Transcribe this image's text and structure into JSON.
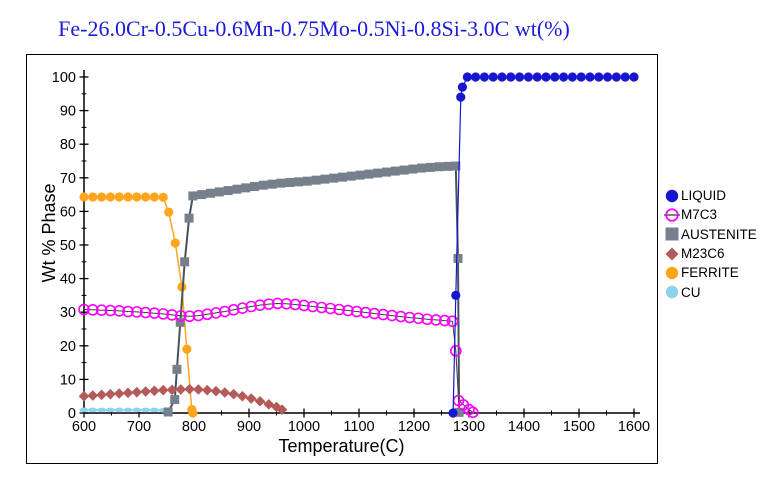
{
  "title": {
    "text": "Fe-26.0Cr-0.5Cu-0.6Mn-0.75Mo-0.5Ni-0.8Si-3.0C wt(%)",
    "color": "#1B1BD8"
  },
  "axes": {
    "x": {
      "label": "Temperature(C)",
      "min": 600,
      "max": 1600,
      "major_step": 100,
      "minor_step": 50,
      "tick_labels": [
        "600",
        "700",
        "800",
        "900",
        "1000",
        "1100",
        "1200",
        "1300",
        "1400",
        "1500",
        "1600"
      ]
    },
    "y": {
      "label": "Wt % Phase",
      "min": 0,
      "max": 100,
      "major_step": 10,
      "minor_step": 5,
      "tick_labels": [
        "0",
        "10",
        "20",
        "30",
        "40",
        "50",
        "60",
        "70",
        "80",
        "90",
        "100"
      ]
    }
  },
  "legend": {
    "items": [
      {
        "label": "LIQUID",
        "marker": "circle",
        "color": "#1616CE"
      },
      {
        "label": "M7C3",
        "marker": "open-circle",
        "color": "#FF00FF"
      },
      {
        "label": "AUSTENITE",
        "marker": "square",
        "color": "#76808C"
      },
      {
        "label": "M23C6",
        "marker": "diamond",
        "color": "#B35A5A"
      },
      {
        "label": "FERRITE",
        "marker": "circle",
        "color": "#FFA51C"
      },
      {
        "label": "CU",
        "marker": "circle",
        "color": "#8FD2EC"
      }
    ]
  },
  "chart_data": {
    "type": "line",
    "title": "Fe-26.0Cr-0.5Cu-0.6Mn-0.75Mo-0.5Ni-0.8Si-3.0C wt(%)",
    "xlabel": "Temperature(C)",
    "ylabel": "Wt % Phase",
    "xlim": [
      600,
      1600
    ],
    "ylim": [
      0,
      100
    ],
    "grid": false,
    "legend_position": "right",
    "series": [
      {
        "name": "CU",
        "marker": "ellipse",
        "color": "#8FD2EC",
        "line_color": "#8FD2EC",
        "line_width": 1.5,
        "points": [
          [
            600,
            0.9
          ],
          [
            616,
            0.9
          ],
          [
            632,
            0.9
          ],
          [
            648,
            0.9
          ],
          [
            664,
            0.9
          ],
          [
            680,
            0.9
          ],
          [
            696,
            0.9
          ],
          [
            712,
            0.9
          ],
          [
            728,
            0.9
          ],
          [
            744,
            0.8
          ]
        ]
      },
      {
        "name": "FERRITE",
        "marker": "circle",
        "color": "#FFA51C",
        "line_color": "#FFA51C",
        "line_width": 1.5,
        "points": [
          [
            600,
            64.3
          ],
          [
            616,
            64.3
          ],
          [
            632,
            64.3
          ],
          [
            648,
            64.3
          ],
          [
            664,
            64.3
          ],
          [
            680,
            64.3
          ],
          [
            696,
            64.3
          ],
          [
            712,
            64.3
          ],
          [
            728,
            64.3
          ],
          [
            744,
            64.2
          ],
          [
            754,
            59.8
          ],
          [
            766,
            50.6
          ],
          [
            778,
            37.5
          ],
          [
            787,
            19
          ],
          [
            796,
            1
          ],
          [
            798,
            0
          ]
        ]
      },
      {
        "name": "AUSTENITE",
        "marker": "square",
        "color": "#76808C",
        "line_color": "#46525C",
        "line_width": 2,
        "points": [
          [
            753,
            0.3
          ],
          [
            765,
            4
          ],
          [
            769,
            13
          ],
          [
            775,
            27
          ],
          [
            783,
            45
          ],
          [
            791,
            58
          ],
          [
            798,
            64.6
          ],
          [
            814,
            65.0
          ],
          [
            830,
            65.4
          ],
          [
            846,
            65.8
          ],
          [
            862,
            66.2
          ],
          [
            878,
            66.6
          ],
          [
            894,
            67.0
          ],
          [
            910,
            67.4
          ],
          [
            926,
            67.8
          ],
          [
            942,
            68.1
          ],
          [
            958,
            68.4
          ],
          [
            974,
            68.6
          ],
          [
            990,
            68.8
          ],
          [
            1006,
            69.0
          ],
          [
            1022,
            69.3
          ],
          [
            1038,
            69.6
          ],
          [
            1054,
            69.9
          ],
          [
            1070,
            70.2
          ],
          [
            1086,
            70.5
          ],
          [
            1102,
            70.8
          ],
          [
            1118,
            71.1
          ],
          [
            1134,
            71.4
          ],
          [
            1150,
            71.7
          ],
          [
            1166,
            72.0
          ],
          [
            1182,
            72.3
          ],
          [
            1198,
            72.6
          ],
          [
            1214,
            72.9
          ],
          [
            1230,
            73.1
          ],
          [
            1246,
            73.3
          ],
          [
            1262,
            73.4
          ],
          [
            1276,
            73.5
          ],
          [
            1280,
            46
          ],
          [
            1282,
            0.2
          ]
        ]
      },
      {
        "name": "M23C6",
        "marker": "diamond",
        "color": "#B35A5A",
        "line_color": "#B35A5A",
        "line_width": 1.5,
        "points": [
          [
            600,
            5.0
          ],
          [
            616,
            5.2
          ],
          [
            632,
            5.4
          ],
          [
            648,
            5.6
          ],
          [
            664,
            5.8
          ],
          [
            680,
            6.0
          ],
          [
            696,
            6.2
          ],
          [
            712,
            6.4
          ],
          [
            728,
            6.6
          ],
          [
            744,
            6.8
          ],
          [
            760,
            6.9
          ],
          [
            776,
            7.0
          ],
          [
            792,
            7.1
          ],
          [
            808,
            7.0
          ],
          [
            824,
            6.8
          ],
          [
            840,
            6.5
          ],
          [
            856,
            6.1
          ],
          [
            872,
            5.6
          ],
          [
            888,
            5.0
          ],
          [
            904,
            4.3
          ],
          [
            920,
            3.5
          ],
          [
            936,
            2.6
          ],
          [
            950,
            1.8
          ],
          [
            960,
            1.0
          ]
        ]
      },
      {
        "name": "M7C3",
        "marker": "open-circle",
        "color": "#FF00FF",
        "line_color": "#3C3C3C",
        "line_width": 1,
        "points": [
          [
            600,
            30.8
          ],
          [
            616,
            30.7
          ],
          [
            632,
            30.6
          ],
          [
            648,
            30.5
          ],
          [
            664,
            30.4
          ],
          [
            680,
            30.2
          ],
          [
            696,
            30.1
          ],
          [
            712,
            29.9
          ],
          [
            728,
            29.7
          ],
          [
            744,
            29.5
          ],
          [
            760,
            29.2
          ],
          [
            776,
            28.9
          ],
          [
            792,
            28.8
          ],
          [
            808,
            29.0
          ],
          [
            824,
            29.4
          ],
          [
            840,
            29.8
          ],
          [
            856,
            30.2
          ],
          [
            872,
            30.7
          ],
          [
            888,
            31.2
          ],
          [
            904,
            31.7
          ],
          [
            920,
            32.1
          ],
          [
            936,
            32.4
          ],
          [
            952,
            32.6
          ],
          [
            968,
            32.5
          ],
          [
            984,
            32.3
          ],
          [
            1000,
            32.0
          ],
          [
            1016,
            31.7
          ],
          [
            1032,
            31.4
          ],
          [
            1048,
            31.1
          ],
          [
            1064,
            30.8
          ],
          [
            1080,
            30.5
          ],
          [
            1096,
            30.2
          ],
          [
            1112,
            29.9
          ],
          [
            1128,
            29.6
          ],
          [
            1144,
            29.3
          ],
          [
            1160,
            29.0
          ],
          [
            1176,
            28.7
          ],
          [
            1192,
            28.4
          ],
          [
            1208,
            28.2
          ],
          [
            1224,
            27.9
          ],
          [
            1240,
            27.7
          ],
          [
            1256,
            27.5
          ],
          [
            1270,
            27.3
          ],
          [
            1276,
            18.5
          ],
          [
            1281,
            3.7
          ],
          [
            1290,
            2.4
          ],
          [
            1300,
            1.0
          ],
          [
            1307,
            0.2
          ]
        ]
      },
      {
        "name": "LIQUID",
        "marker": "circle",
        "color": "#1616CE",
        "line_color": "#1616CE",
        "line_width": 1.2,
        "points": [
          [
            1271,
            0
          ],
          [
            1276,
            35
          ],
          [
            1285,
            94
          ],
          [
            1288,
            97
          ],
          [
            1297,
            100
          ],
          [
            1312,
            100
          ],
          [
            1328,
            100
          ],
          [
            1344,
            100
          ],
          [
            1360,
            100
          ],
          [
            1376,
            100
          ],
          [
            1392,
            100
          ],
          [
            1408,
            100
          ],
          [
            1424,
            100
          ],
          [
            1440,
            100
          ],
          [
            1456,
            100
          ],
          [
            1472,
            100
          ],
          [
            1488,
            100
          ],
          [
            1504,
            100
          ],
          [
            1520,
            100
          ],
          [
            1536,
            100
          ],
          [
            1552,
            100
          ],
          [
            1568,
            100
          ],
          [
            1584,
            100
          ],
          [
            1600,
            100
          ]
        ]
      }
    ]
  }
}
